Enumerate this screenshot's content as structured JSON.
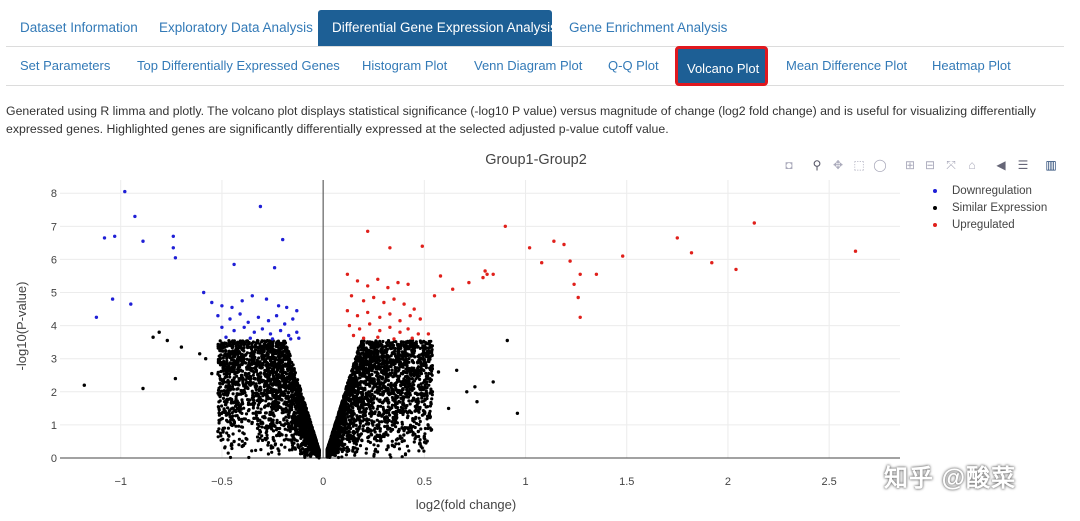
{
  "main_tabs": [
    {
      "label": "Dataset Information",
      "active": false
    },
    {
      "label": "Exploratory Data Analysis",
      "active": false
    },
    {
      "label": "Differential Gene Expression Analysis",
      "active": true
    },
    {
      "label": "Gene Enrichment Analysis",
      "active": false
    }
  ],
  "sub_tabs": [
    {
      "label": "Set Parameters",
      "active": false
    },
    {
      "label": "Top Differentially Expressed Genes",
      "active": false
    },
    {
      "label": "Histogram Plot",
      "active": false
    },
    {
      "label": "Venn Diagram Plot",
      "active": false
    },
    {
      "label": "Q-Q Plot",
      "active": false
    },
    {
      "label": "Volcano Plot",
      "active": true
    },
    {
      "label": "Mean Difference Plot",
      "active": false
    },
    {
      "label": "Heatmap Plot",
      "active": false
    }
  ],
  "description": "Generated using R limma and plotly. The volcano plot displays statistical significance (-log10 P value) versus magnitude of change (log2 fold change) and is useful for visualizing differentially expressed genes. Highlighted genes are significantly differentially expressed at the selected adjusted p-value cutoff value.",
  "modebar_icons": [
    "camera-icon",
    "zoom-icon",
    "pan-icon",
    "box-select-icon",
    "lasso-icon",
    "zoom-in-icon",
    "zoom-out-icon",
    "autoscale-icon",
    "reset-axes-icon",
    "spike-lines-icon",
    "hover-closest-icon",
    "hover-compare-icon",
    "plotly-logo-icon"
  ],
  "watermark": "知乎 @酸菜",
  "colors": {
    "accent": "#1d5f95",
    "highlight_border": "#e0181f",
    "link": "#337ab7",
    "down": "#1f1fd6",
    "similar": "#000000",
    "up": "#e0201b"
  },
  "chart_data": {
    "type": "scatter",
    "title": "Group1-Group2",
    "xlabel": "log2(fold change)",
    "ylabel": "-log10(P-value)",
    "xlim": [
      -1.3,
      2.85
    ],
    "ylim": [
      0,
      8.4
    ],
    "xticks": [
      -1,
      -0.5,
      0,
      0.5,
      1,
      1.5,
      2,
      2.5
    ],
    "xtick_labels": [
      "−1",
      "−0.5",
      "0",
      "0.5",
      "1",
      "1.5",
      "2",
      "2.5"
    ],
    "yticks": [
      0,
      1,
      2,
      3,
      4,
      5,
      6,
      7,
      8
    ],
    "ytick_labels": [
      "0",
      "1",
      "2",
      "3",
      "4",
      "5",
      "6",
      "7",
      "8"
    ],
    "grid": true,
    "legend_position": "top-right",
    "series": [
      {
        "name": "Downregulation",
        "color": "#1f1fd6",
        "points": [
          [
            -0.98,
            8.05
          ],
          [
            -0.93,
            7.3
          ],
          [
            -1.08,
            6.65
          ],
          [
            -1.03,
            6.7
          ],
          [
            -0.89,
            6.55
          ],
          [
            -0.74,
            6.7
          ],
          [
            -0.74,
            6.35
          ],
          [
            -0.73,
            6.05
          ],
          [
            -1.04,
            4.8
          ],
          [
            -0.95,
            4.65
          ],
          [
            -1.12,
            4.25
          ],
          [
            -0.31,
            7.6
          ],
          [
            -0.2,
            6.6
          ],
          [
            -0.44,
            5.85
          ],
          [
            -0.24,
            5.75
          ],
          [
            -0.59,
            5.0
          ],
          [
            -0.55,
            4.7
          ],
          [
            -0.5,
            4.6
          ],
          [
            -0.45,
            4.55
          ],
          [
            -0.4,
            4.75
          ],
          [
            -0.35,
            4.9
          ],
          [
            -0.28,
            4.8
          ],
          [
            -0.22,
            4.6
          ],
          [
            -0.18,
            4.55
          ],
          [
            -0.13,
            4.45
          ],
          [
            -0.52,
            4.3
          ],
          [
            -0.46,
            4.2
          ],
          [
            -0.41,
            4.35
          ],
          [
            -0.37,
            4.1
          ],
          [
            -0.32,
            4.25
          ],
          [
            -0.27,
            4.15
          ],
          [
            -0.23,
            4.3
          ],
          [
            -0.19,
            4.05
          ],
          [
            -0.15,
            4.2
          ],
          [
            -0.5,
            3.95
          ],
          [
            -0.44,
            3.85
          ],
          [
            -0.39,
            3.95
          ],
          [
            -0.34,
            3.8
          ],
          [
            -0.3,
            3.9
          ],
          [
            -0.26,
            3.75
          ],
          [
            -0.21,
            3.85
          ],
          [
            -0.17,
            3.7
          ],
          [
            -0.13,
            3.8
          ],
          [
            -0.48,
            3.65
          ],
          [
            -0.36,
            3.62
          ],
          [
            -0.25,
            3.6
          ],
          [
            -0.16,
            3.6
          ],
          [
            -0.12,
            3.62
          ]
        ]
      },
      {
        "name": "Similar Expression",
        "color": "#000000",
        "points": [
          [
            -1.18,
            2.2
          ],
          [
            -0.89,
            2.1
          ],
          [
            -0.84,
            3.65
          ],
          [
            -0.81,
            3.8
          ],
          [
            -0.77,
            3.55
          ],
          [
            -0.73,
            2.4
          ],
          [
            -0.61,
            3.15
          ],
          [
            -0.58,
            3.0
          ],
          [
            -0.55,
            2.55
          ],
          [
            -0.47,
            0.55
          ],
          [
            -0.44,
            0.5
          ],
          [
            -0.52,
            0.8
          ],
          [
            -0.4,
            0.35
          ],
          [
            0.96,
            1.35
          ],
          [
            0.91,
            3.55
          ],
          [
            0.84,
            2.3
          ],
          [
            0.76,
            1.7
          ],
          [
            0.75,
            2.15
          ],
          [
            0.62,
            1.5
          ],
          [
            0.66,
            2.65
          ],
          [
            0.54,
            2.0
          ],
          [
            0.57,
            2.6
          ],
          [
            0.47,
            0.8
          ],
          [
            0.5,
            0.65
          ],
          [
            -0.7,
            3.35
          ],
          [
            0.71,
            2.0
          ],
          [
            0.44,
            3.1
          ]
        ]
      },
      {
        "name": "Upregulated",
        "color": "#e0201b",
        "points": [
          [
            0.22,
            6.85
          ],
          [
            0.33,
            6.35
          ],
          [
            0.49,
            6.4
          ],
          [
            0.9,
            7.0
          ],
          [
            1.02,
            6.35
          ],
          [
            1.14,
            6.55
          ],
          [
            1.19,
            6.45
          ],
          [
            1.22,
            5.95
          ],
          [
            1.08,
            5.9
          ],
          [
            1.27,
            5.55
          ],
          [
            1.35,
            5.55
          ],
          [
            1.48,
            6.1
          ],
          [
            1.75,
            6.65
          ],
          [
            1.82,
            6.2
          ],
          [
            1.92,
            5.9
          ],
          [
            2.04,
            5.7
          ],
          [
            2.13,
            7.1
          ],
          [
            2.63,
            6.25
          ],
          [
            1.24,
            5.25
          ],
          [
            1.26,
            4.85
          ],
          [
            1.27,
            4.25
          ],
          [
            0.64,
            5.1
          ],
          [
            0.72,
            5.3
          ],
          [
            0.79,
            5.45
          ],
          [
            0.8,
            5.65
          ],
          [
            0.81,
            5.55
          ],
          [
            0.84,
            5.55
          ],
          [
            0.58,
            5.5
          ],
          [
            0.55,
            4.9
          ],
          [
            0.12,
            5.55
          ],
          [
            0.17,
            5.35
          ],
          [
            0.22,
            5.2
          ],
          [
            0.27,
            5.4
          ],
          [
            0.32,
            5.15
          ],
          [
            0.37,
            5.3
          ],
          [
            0.42,
            5.25
          ],
          [
            0.14,
            4.9
          ],
          [
            0.2,
            4.75
          ],
          [
            0.25,
            4.85
          ],
          [
            0.3,
            4.7
          ],
          [
            0.35,
            4.8
          ],
          [
            0.4,
            4.65
          ],
          [
            0.45,
            4.5
          ],
          [
            0.12,
            4.45
          ],
          [
            0.17,
            4.3
          ],
          [
            0.22,
            4.4
          ],
          [
            0.28,
            4.25
          ],
          [
            0.33,
            4.35
          ],
          [
            0.38,
            4.15
          ],
          [
            0.43,
            4.3
          ],
          [
            0.48,
            4.2
          ],
          [
            0.13,
            4.0
          ],
          [
            0.18,
            3.9
          ],
          [
            0.23,
            4.05
          ],
          [
            0.28,
            3.85
          ],
          [
            0.33,
            3.95
          ],
          [
            0.38,
            3.8
          ],
          [
            0.42,
            3.9
          ],
          [
            0.47,
            3.75
          ],
          [
            0.15,
            3.7
          ],
          [
            0.2,
            3.62
          ],
          [
            0.27,
            3.65
          ],
          [
            0.35,
            3.6
          ],
          [
            0.44,
            3.62
          ],
          [
            0.52,
            3.75
          ]
        ]
      }
    ]
  }
}
